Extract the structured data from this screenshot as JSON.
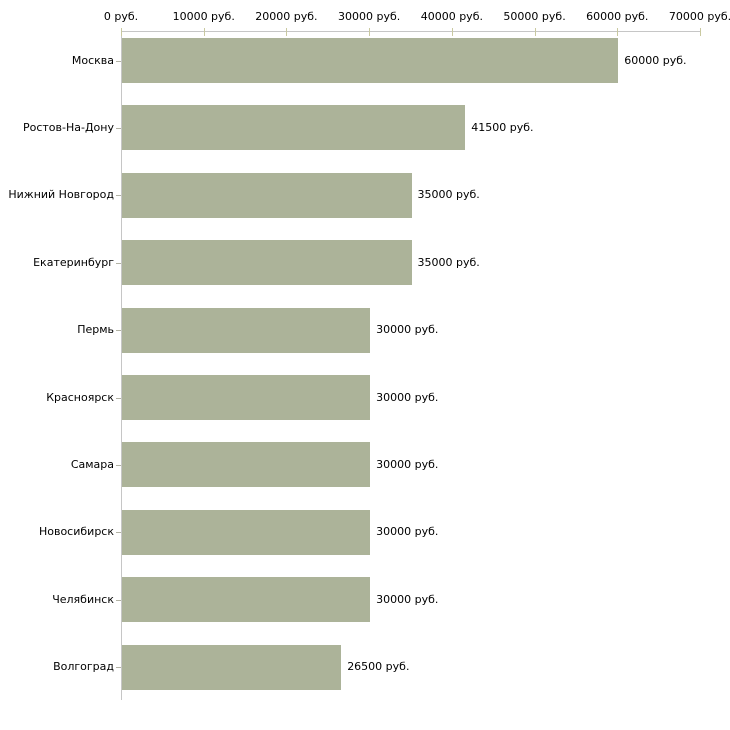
{
  "chart_data": {
    "type": "bar",
    "orientation": "horizontal",
    "title": "",
    "xlabel": "",
    "ylabel": "",
    "unit": "руб.",
    "grid": false,
    "legend": null,
    "x_axis_position": "top",
    "xlim": [
      0,
      70000
    ],
    "x_tick_step": 10000,
    "x_tick_labels": [
      "0 руб.",
      "10000 руб.",
      "20000 руб.",
      "30000 руб.",
      "40000 руб.",
      "50000 руб.",
      "60000 руб.",
      "70000 руб."
    ],
    "categories": [
      "Москва",
      "Ростов-На-Дону",
      "Нижний Новгород",
      "Екатеринбург",
      "Пермь",
      "Красноярск",
      "Самара",
      "Новосибирск",
      "Челябинск",
      "Волгоград"
    ],
    "values": [
      60000,
      41500,
      35000,
      35000,
      30000,
      30000,
      30000,
      30000,
      30000,
      26500
    ],
    "value_labels": [
      "60000 руб.",
      "41500 руб.",
      "35000 руб.",
      "35000 руб.",
      "30000 руб.",
      "30000 руб.",
      "30000 руб.",
      "30000 руб.",
      "30000 руб.",
      "26500 руб."
    ],
    "colors": {
      "bar": "#acb399",
      "axis_line": "#c6c6c6",
      "x_tick": "#c9c9a0",
      "y_tick": "#b2b2a4",
      "text": "#000000",
      "background": "#ffffff"
    }
  }
}
